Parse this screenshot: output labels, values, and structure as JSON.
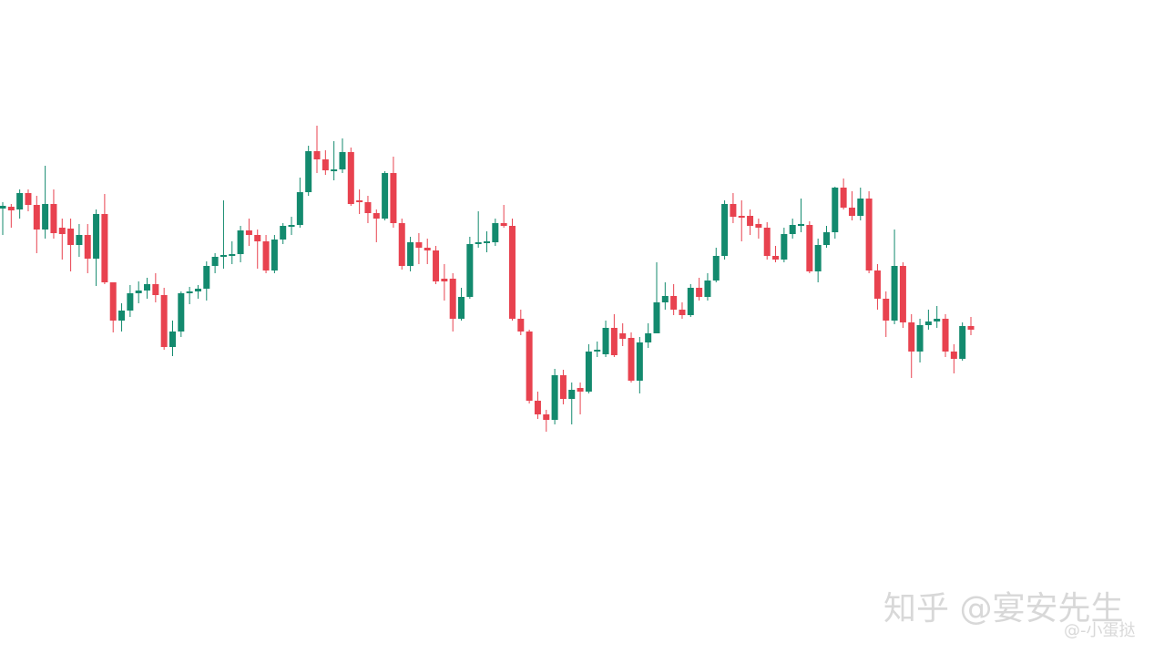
{
  "chart_data": {
    "type": "candlestick",
    "up_color": "#138a6e",
    "down_color": "#e8424f",
    "ylim": [
      0,
      717
    ],
    "annotations": [
      "知乎 @宴安先生",
      "@-小蛋挞"
    ],
    "open": [
      488,
      490,
      487,
      505,
      492,
      465,
      493,
      467,
      466,
      448,
      459,
      433,
      482,
      407,
      365,
      376,
      395,
      398,
      405,
      393,
      336,
      353,
      395,
      397,
      400,
      425,
      435,
      437,
      438,
      464,
      459,
      452,
      420,
      454,
      469,
      470,
      506,
      551,
      542,
      530,
      531,
      550,
      497,
      495,
      483,
      477,
      527,
      472,
      425,
      451,
      445,
      442,
      411,
      411,
      367,
      391,
      449,
      451,
      451,
      472,
      469,
      367,
      353,
      277,
      262,
      256,
      305,
      279,
      291,
      287,
      331,
      328,
      357,
      351,
      346,
      299,
      341,
      351,
      385,
      392,
      377,
      371,
      401,
      391,
      409,
      436,
      493,
      480,
      480,
      471,
      467,
      436,
      432,
      460,
      470,
      470,
      419,
      448,
      462,
      511,
      489,
      480,
      499,
      420,
      389,
      365,
      425,
      363,
      331,
      360,
      364,
      367,
      331,
      323,
      359
    ],
    "high": [
      495,
      493,
      509,
      509,
      502,
      535,
      509,
      477,
      477,
      471,
      471,
      487,
      504,
      407,
      384,
      404,
      408,
      412,
      417,
      401,
      365,
      397,
      402,
      404,
      430,
      439,
      497,
      452,
      469,
      477,
      465,
      459,
      459,
      472,
      479,
      522,
      557,
      579,
      552,
      562,
      565,
      555,
      509,
      502,
      487,
      529,
      545,
      477,
      457,
      461,
      455,
      447,
      427,
      417,
      401,
      457,
      485,
      463,
      477,
      492,
      477,
      377,
      355,
      287,
      267,
      312,
      311,
      297,
      297,
      339,
      342,
      365,
      372,
      362,
      352,
      347,
      362,
      429,
      407,
      405,
      385,
      405,
      412,
      417,
      445,
      497,
      505,
      497,
      487,
      477,
      473,
      447,
      467,
      477,
      499,
      474,
      455,
      469,
      512,
      521,
      507,
      511,
      507,
      427,
      397,
      465,
      429,
      372,
      367,
      377,
      381,
      372,
      339,
      363,
      369
    ],
    "low": [
      459,
      467,
      477,
      485,
      439,
      455,
      455,
      432,
      419,
      435,
      417,
      403,
      405,
      352,
      353,
      369,
      384,
      389,
      385,
      333,
      326,
      347,
      383,
      389,
      387,
      417,
      422,
      427,
      429,
      447,
      422,
      417,
      417,
      449,
      459,
      467,
      502,
      527,
      525,
      519,
      527,
      491,
      482,
      472,
      451,
      475,
      467,
      421,
      419,
      427,
      427,
      405,
      387,
      353,
      365,
      389,
      445,
      440,
      447,
      467,
      365,
      349,
      274,
      257,
      243,
      251,
      273,
      251,
      262,
      285,
      325,
      325,
      325,
      337,
      297,
      285,
      335,
      351,
      377,
      371,
      367,
      369,
      387,
      387,
      407,
      432,
      472,
      452,
      459,
      455,
      432,
      429,
      429,
      455,
      462,
      417,
      407,
      445,
      455,
      487,
      475,
      475,
      417,
      377,
      347,
      361,
      357,
      302,
      319,
      355,
      357,
      325,
      307,
      321,
      349
    ],
    "close": [
      491,
      486,
      505,
      492,
      465,
      493,
      461,
      460,
      448,
      459,
      433,
      482,
      407,
      365,
      376,
      395,
      398,
      405,
      393,
      336,
      353,
      395,
      397,
      400,
      425,
      435,
      437,
      438,
      464,
      459,
      452,
      420,
      454,
      469,
      470,
      506,
      551,
      542,
      530,
      531,
      550,
      493,
      495,
      483,
      477,
      527,
      472,
      425,
      451,
      445,
      442,
      408,
      408,
      367,
      391,
      449,
      451,
      452,
      472,
      469,
      367,
      353,
      277,
      262,
      256,
      305,
      279,
      289,
      287,
      331,
      333,
      357,
      327,
      345,
      299,
      341,
      351,
      385,
      392,
      377,
      371,
      401,
      391,
      409,
      436,
      493,
      479,
      478,
      469,
      467,
      436,
      432,
      460,
      470,
      471,
      419,
      448,
      462,
      511,
      489,
      480,
      499,
      420,
      389,
      365,
      425,
      363,
      331,
      360,
      364,
      367,
      331,
      323,
      359,
      355
    ]
  }
}
